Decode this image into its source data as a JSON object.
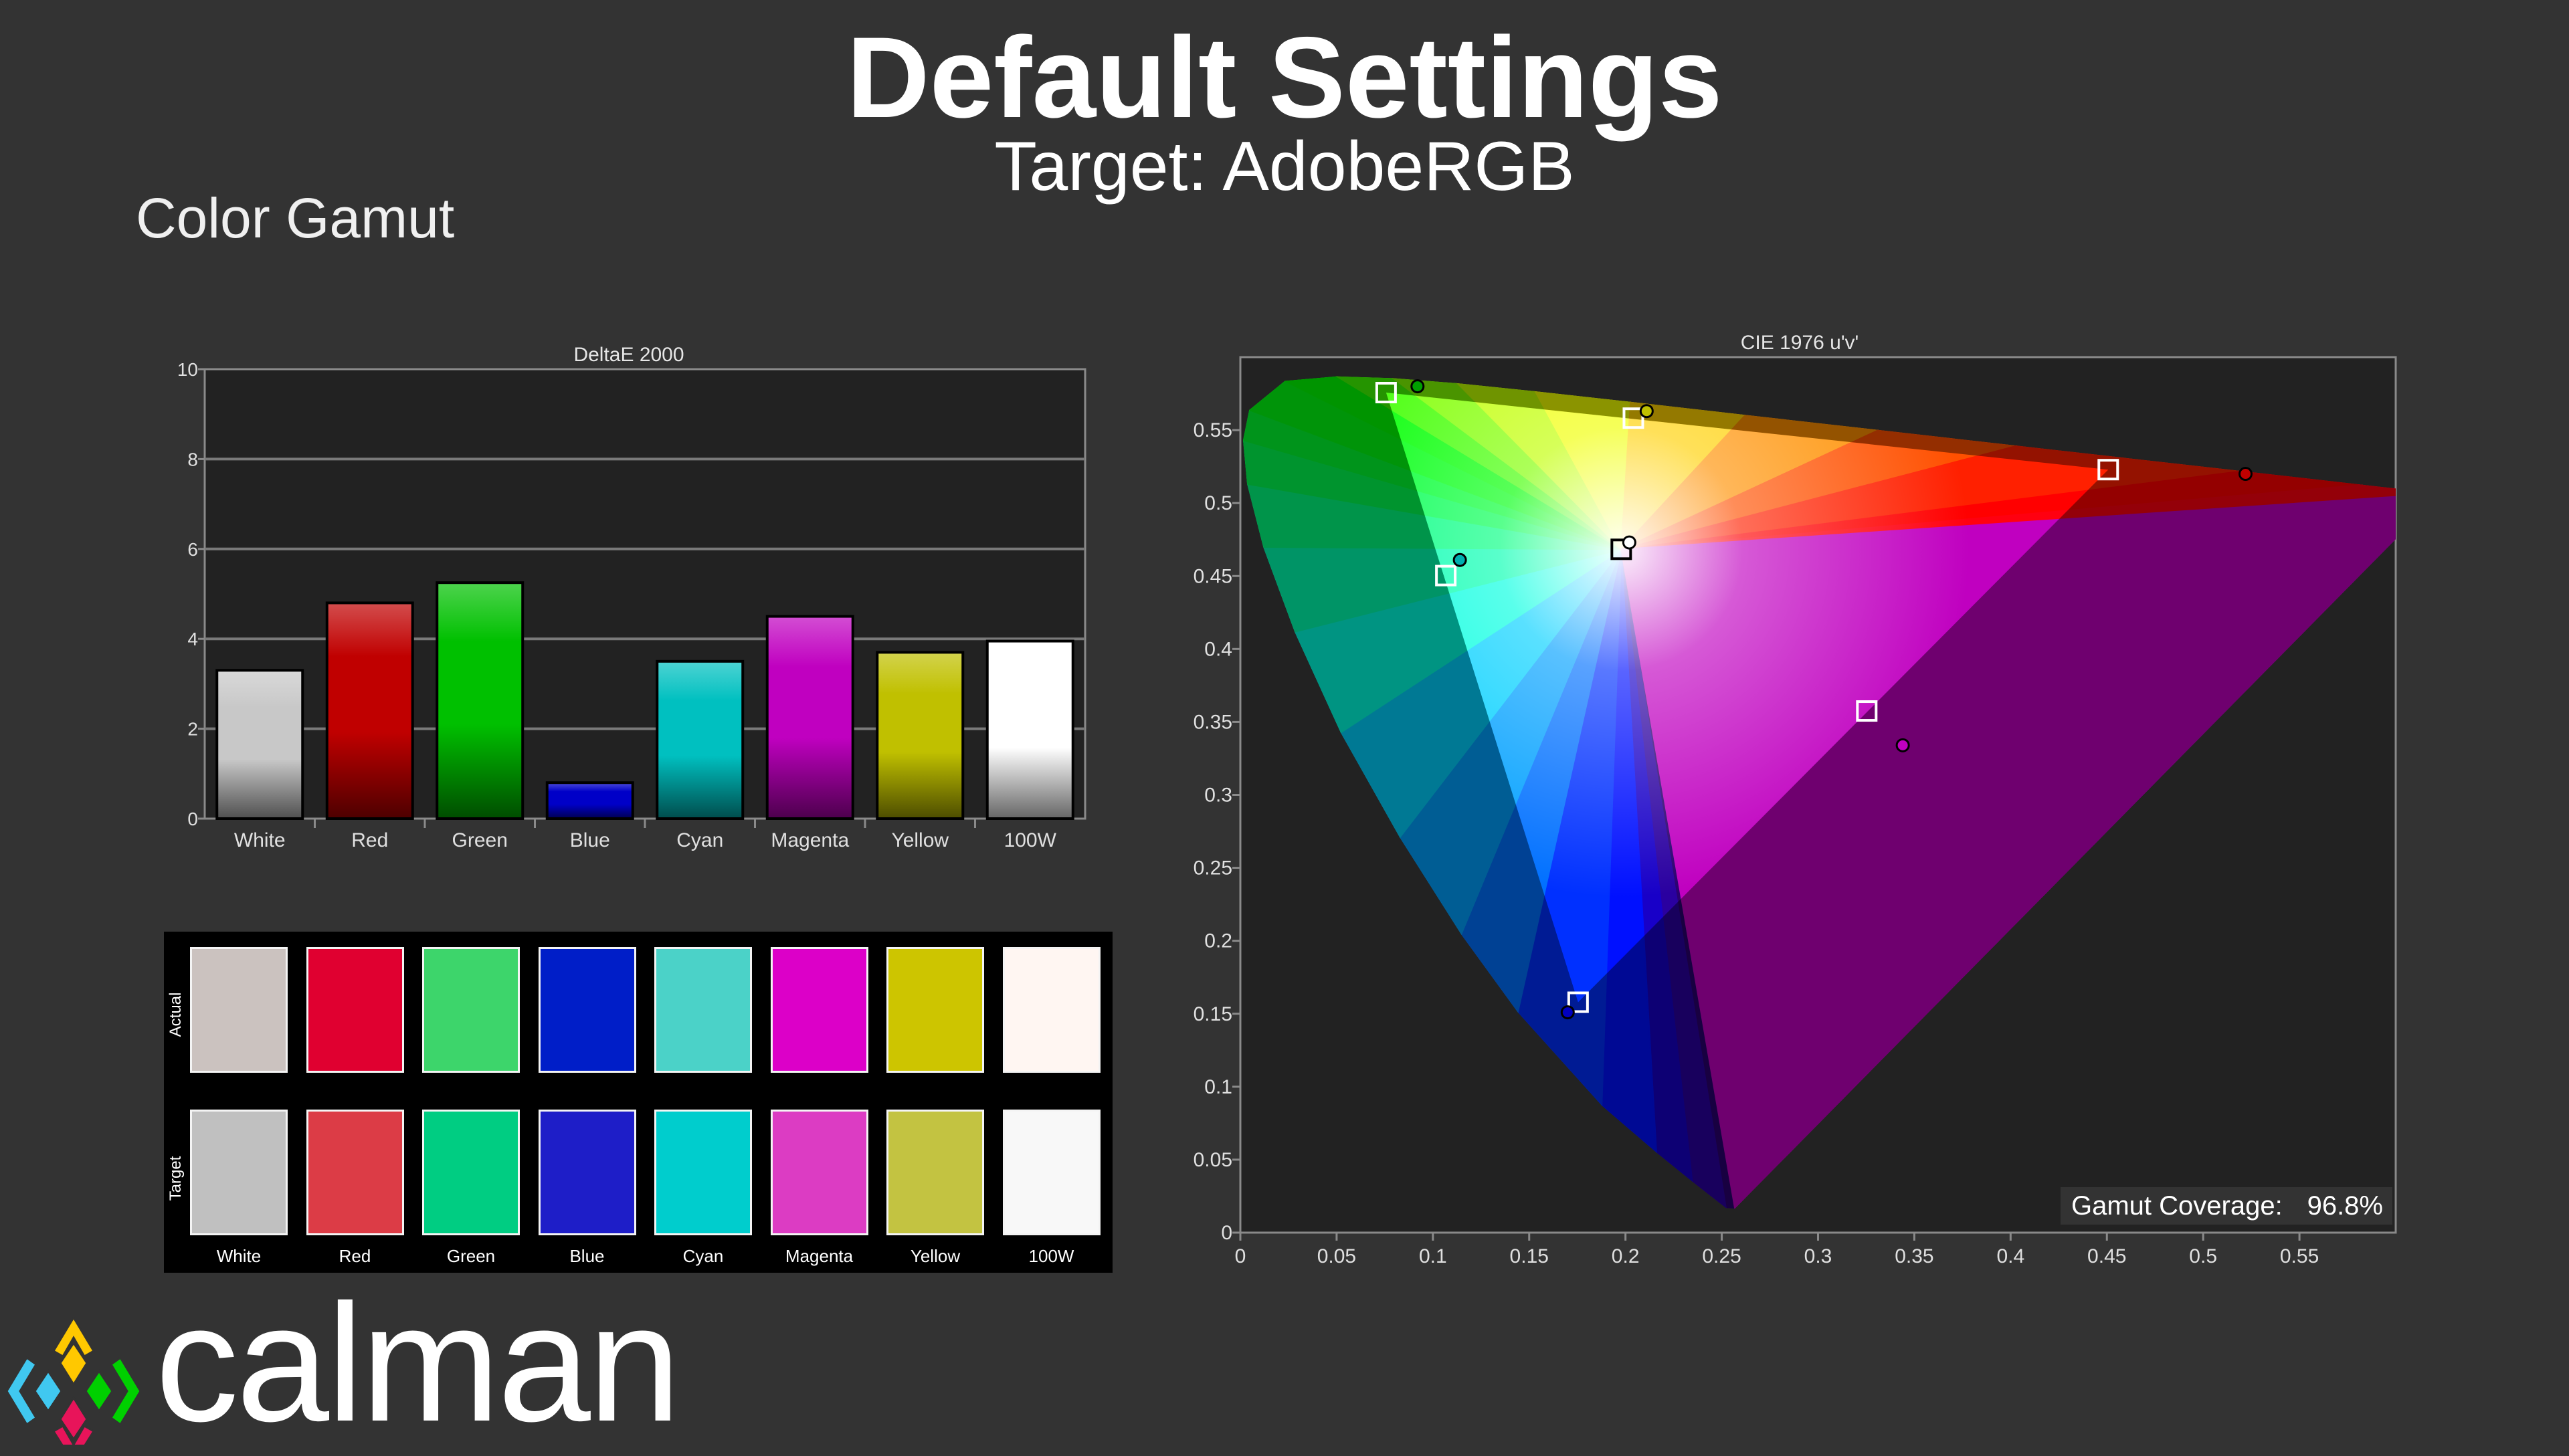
{
  "header": {
    "title": "Default Settings",
    "subtitle": "Target: AdobeRGB",
    "section": "Color Gamut"
  },
  "chart_data": [
    {
      "type": "bar",
      "title": "DeltaE 2000",
      "categories": [
        "White",
        "Red",
        "Green",
        "Blue",
        "Cyan",
        "Magenta",
        "Yellow",
        "100W"
      ],
      "values": [
        3.3,
        4.8,
        5.25,
        0.8,
        3.5,
        4.5,
        3.7,
        3.95
      ],
      "colors": [
        "#c8c8c8",
        "#c00000",
        "#00c000",
        "#0000c8",
        "#00c0c0",
        "#c000c0",
        "#c0c000",
        "#ffffff"
      ],
      "ylim": [
        0,
        10
      ],
      "yticks": [
        "0",
        "2",
        "4",
        "6",
        "8",
        "10"
      ],
      "grid": true
    },
    {
      "type": "scatter",
      "title": "CIE 1976 u'v'",
      "xlim": [
        0,
        0.6
      ],
      "ylim": [
        0,
        0.6
      ],
      "xticks": [
        "0",
        "0.05",
        "0.1",
        "0.15",
        "0.2",
        "0.25",
        "0.3",
        "0.35",
        "0.4",
        "0.45",
        "0.5",
        "0.55"
      ],
      "yticks": [
        "0",
        "0.05",
        "0.1",
        "0.15",
        "0.2",
        "0.25",
        "0.3",
        "0.35",
        "0.4",
        "0.45",
        "0.5",
        "0.55"
      ],
      "target_gamut": "AdobeRGB",
      "targets": [
        {
          "name": "Red",
          "u": 0.4507,
          "v": 0.5229
        },
        {
          "name": "Green",
          "u": 0.0757,
          "v": 0.5757
        },
        {
          "name": "Blue",
          "u": 0.1754,
          "v": 0.1579
        },
        {
          "name": "White",
          "u": 0.1978,
          "v": 0.4683
        },
        {
          "name": "Cyan",
          "u": 0.1067,
          "v": 0.4503
        },
        {
          "name": "Magenta",
          "u": 0.3253,
          "v": 0.3575
        },
        {
          "name": "Yellow",
          "u": 0.2041,
          "v": 0.5582
        }
      ],
      "measured": [
        {
          "name": "Red",
          "u": 0.522,
          "v": 0.52,
          "color": "#c00000"
        },
        {
          "name": "Green",
          "u": 0.092,
          "v": 0.58,
          "color": "#00a000"
        },
        {
          "name": "Blue",
          "u": 0.17,
          "v": 0.151,
          "color": "#0000c0"
        },
        {
          "name": "White",
          "u": 0.202,
          "v": 0.473,
          "color": "#ffffff"
        },
        {
          "name": "Cyan",
          "u": 0.114,
          "v": 0.461,
          "color": "#00b0b0"
        },
        {
          "name": "Magenta",
          "u": 0.344,
          "v": 0.334,
          "color": "#c000c0"
        },
        {
          "name": "Yellow",
          "u": 0.211,
          "v": 0.563,
          "color": "#c0c000"
        }
      ],
      "coverage_label": "Gamut Coverage:",
      "coverage_value": "96.8%"
    }
  ],
  "swatches": {
    "row_labels": [
      "Actual",
      "Target"
    ],
    "labels": [
      "White",
      "Red",
      "Green",
      "Blue",
      "Cyan",
      "Magenta",
      "Yellow",
      "100W"
    ],
    "actual": [
      "#cbc2bf",
      "#e00030",
      "#3dd56b",
      "#001ec8",
      "#4bd2c8",
      "#dc00c8",
      "#cdc500",
      "#fff6f2"
    ],
    "target": [
      "#c0c0c0",
      "#dc3c46",
      "#00cd82",
      "#1e1ec8",
      "#00cdcd",
      "#dc3cc3",
      "#c3c341",
      "#f8f8f8"
    ]
  },
  "logo": {
    "text": "calman"
  }
}
